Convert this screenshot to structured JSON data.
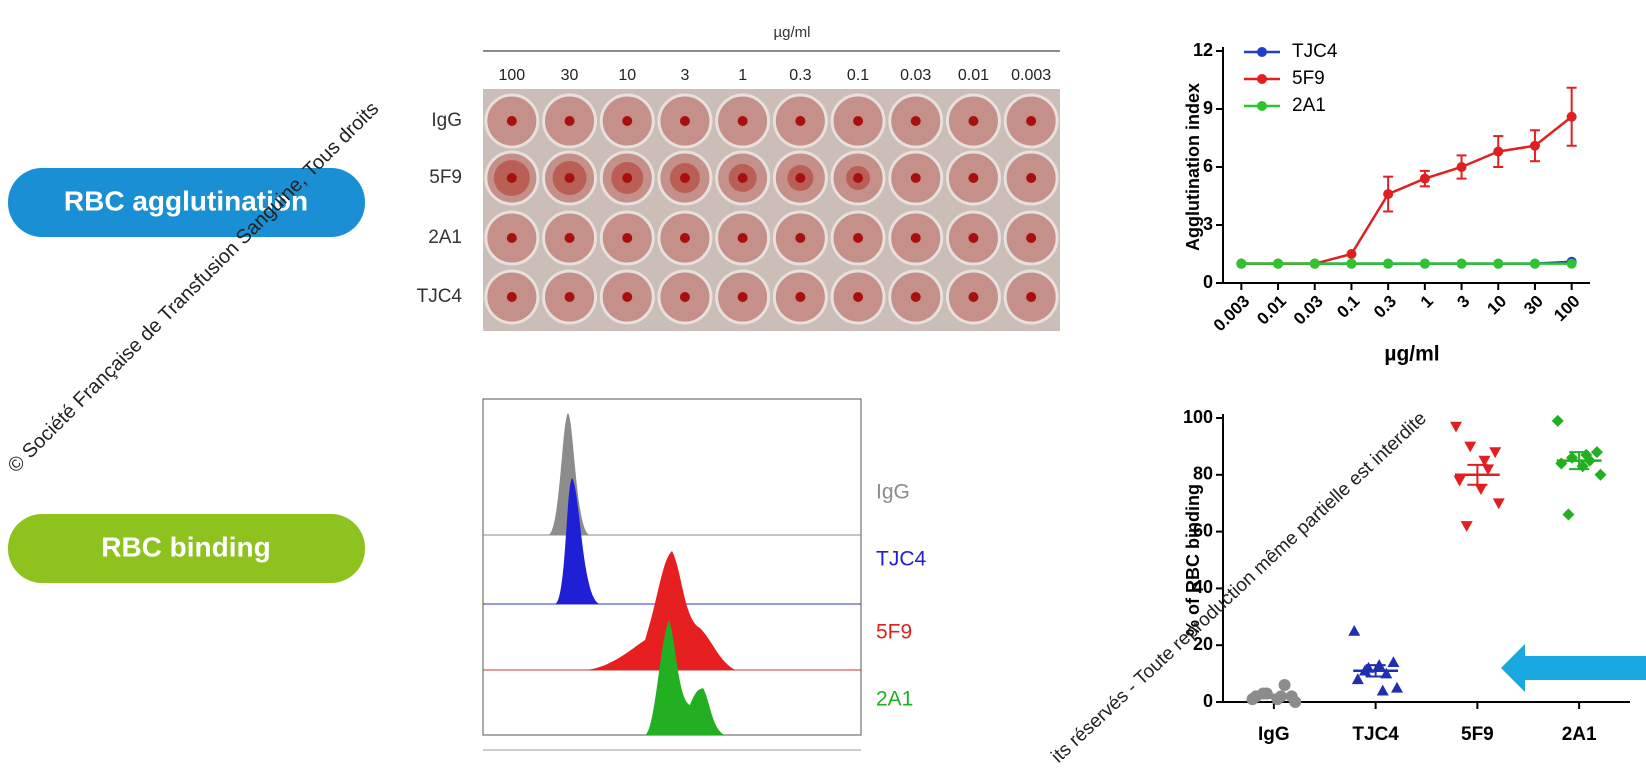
{
  "labels": {
    "agglutination": "RBC agglutination",
    "binding": "RBC binding"
  },
  "plate": {
    "unit": "µg/ml",
    "concentrations": [
      "100",
      "30",
      "10",
      "3",
      "1",
      "0.3",
      "0.1",
      "0.03",
      "0.01",
      "0.003"
    ],
    "rows": [
      "IgG",
      "5F9",
      "2A1",
      "TJC4"
    ]
  },
  "histogram": {
    "labels": [
      {
        "text": "IgG",
        "color": "#8c8c8c"
      },
      {
        "text": "TJC4",
        "color": "#1f1fd6"
      },
      {
        "text": "5F9",
        "color": "#e02020"
      },
      {
        "text": "2A1",
        "color": "#20b020"
      }
    ]
  },
  "watermark": [
    "© Société Française de Transfusion Sanguine, Tous droits",
    "its réservés - Toute reproduction même partielle est interdite"
  ],
  "chart_data": [
    {
      "type": "line",
      "ylabel": "Agglutination index",
      "xlabel": "µg/ml",
      "categories": [
        "0.003",
        "0.01",
        "0.03",
        "0.1",
        "0.3",
        "1",
        "3",
        "10",
        "30",
        "100"
      ],
      "ylim": [
        0,
        12
      ],
      "yticks": [
        0,
        3,
        6,
        9,
        12
      ],
      "series": [
        {
          "name": "TJC4",
          "color": "#1f3fc8",
          "values": [
            1,
            1,
            1,
            1,
            1,
            1,
            1,
            1,
            1,
            1.1
          ]
        },
        {
          "name": "5F9",
          "color": "#e02020",
          "values": [
            1,
            1,
            1,
            1.5,
            4.6,
            5.4,
            6,
            6.8,
            7.1,
            8.6
          ],
          "errors": [
            null,
            null,
            null,
            null,
            0.9,
            0.4,
            0.6,
            0.8,
            0.8,
            1.5
          ]
        },
        {
          "name": "2A1",
          "color": "#2ec42e",
          "values": [
            1,
            1,
            1,
            1,
            1,
            1,
            1,
            1,
            1,
            1
          ]
        }
      ]
    },
    {
      "type": "strip",
      "ylabel": "% of RBC binding",
      "categories": [
        "IgG",
        "TJC4",
        "5F9",
        "2A1"
      ],
      "ylim": [
        0,
        100
      ],
      "yticks": [
        0,
        20,
        40,
        60,
        80,
        100
      ],
      "groups": [
        {
          "color": "#8c8c8c",
          "marker": "circle",
          "values": [
            1,
            2,
            3,
            6,
            2,
            1,
            0,
            3,
            2
          ],
          "mean": 2,
          "sem": 0.6
        },
        {
          "color": "#1f2fb0",
          "marker": "triangle",
          "values": [
            25,
            14,
            12,
            10,
            8,
            13,
            5,
            11,
            4
          ],
          "mean": 11,
          "sem": 2
        },
        {
          "color": "#e02020",
          "marker": "triangle-down",
          "values": [
            97,
            88,
            90,
            82,
            78,
            75,
            70,
            62,
            85
          ],
          "mean": 80,
          "sem": 3.5
        },
        {
          "color": "#20b020",
          "marker": "diamond",
          "values": [
            99,
            88,
            86,
            85,
            84,
            83,
            80,
            66,
            87
          ],
          "mean": 85,
          "sem": 3
        }
      ]
    }
  ]
}
